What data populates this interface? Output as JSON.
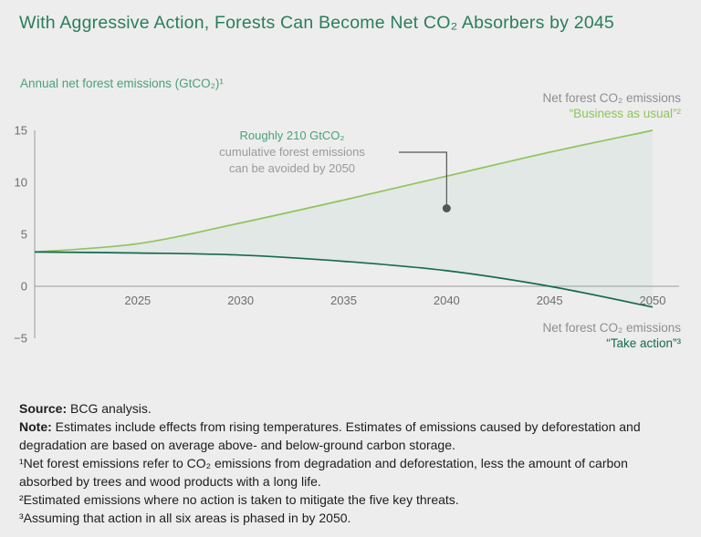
{
  "title": "With Aggressive Action, Forests Can Become Net CO₂ Absorbers by 2045",
  "chart_data": {
    "type": "line",
    "title": "Annual net forest emissions (GtCO₂)¹",
    "xlim": [
      2020,
      2050
    ],
    "ylim": [
      -5,
      15
    ],
    "xticks": [
      2025,
      2030,
      2035,
      2040,
      2045,
      2050
    ],
    "yticks": [
      15,
      10,
      5,
      0,
      -5
    ],
    "grid": false,
    "legend_position": "inline-right",
    "area_between_series": true,
    "x": [
      2020,
      2025,
      2030,
      2035,
      2040,
      2045,
      2050
    ],
    "series": [
      {
        "name": "Business as usual",
        "full_label": "Net forest CO₂ emissions “Business as usual”²",
        "color": "#8fc45e",
        "values": [
          3.3,
          4.1,
          6.1,
          8.3,
          10.6,
          12.9,
          15.0
        ]
      },
      {
        "name": "Take action",
        "full_label": "Net forest CO₂ emissions “Take action”³",
        "color": "#166a50",
        "values": [
          3.3,
          3.2,
          3.0,
          2.4,
          1.5,
          0.0,
          -2.0
        ]
      }
    ],
    "annotation": {
      "line1": "Roughly 210 GtCO₂",
      "line2": "cumulative forest emissions",
      "line3": "can be avoided by 2050",
      "point": {
        "x": 2040,
        "y": 7.5
      }
    }
  },
  "labels": {
    "bau": {
      "line1": "Net forest CO₂ emissions",
      "line2": "“Business as usual”²"
    },
    "take_action": {
      "line1": "Net forest CO₂ emissions",
      "line2": "“Take action”³"
    }
  },
  "footer": {
    "source_label": "Source:",
    "source_text": " BCG analysis.",
    "note_label": "Note:",
    "note_text": " Estimates include effects from rising temperatures. Estimates of emissions caused by deforestation and degradation are based on average above- and below-ground carbon storage.",
    "fn1": "¹Net forest emissions refer to CO₂ emissions from degradation and deforestation, less the amount of carbon absorbed by trees and wood products with a long life.",
    "fn2": "²Estimated emissions where no action is taken to mitigate the five key threats.",
    "fn3": "³Assuming that action in all six areas is phased in by 2050."
  }
}
